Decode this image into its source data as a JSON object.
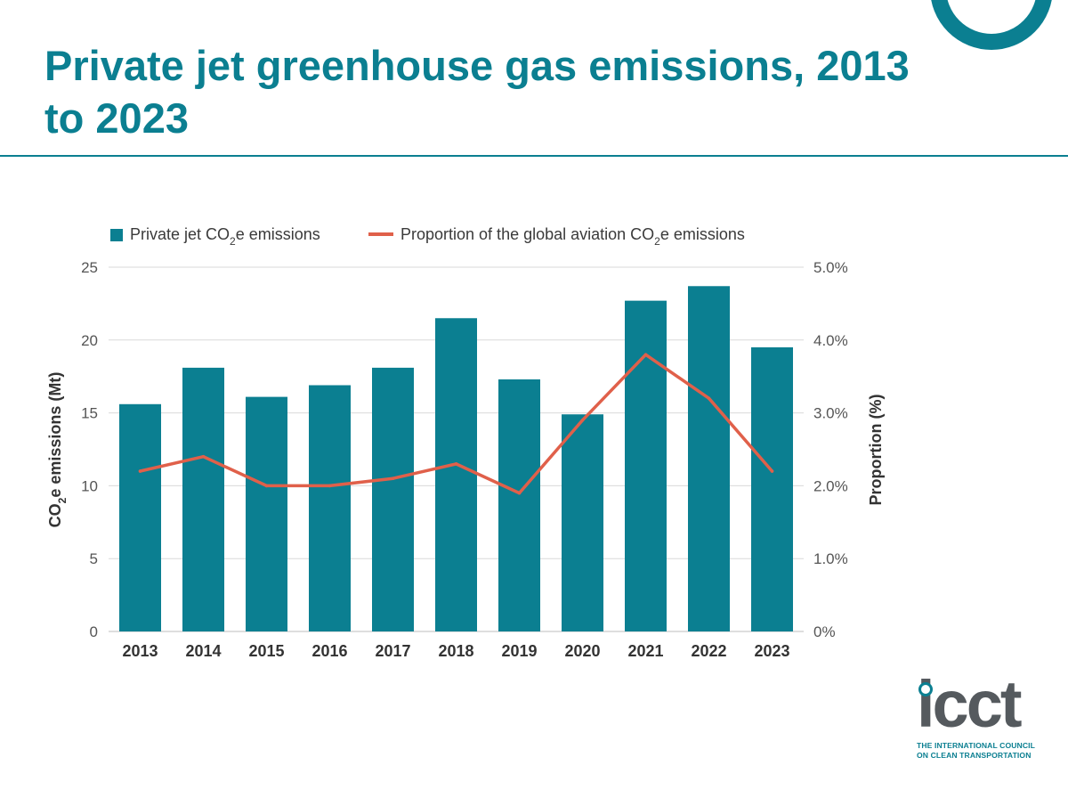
{
  "header": {
    "title": "Private jet greenhouse gas emissions, 2013 to 2023"
  },
  "logo": {
    "word": "icct",
    "tagline_line1": "THE INTERNATIONAL COUNCIL",
    "tagline_line2": "ON CLEAN TRANSPORTATION"
  },
  "colors": {
    "brand": "#0b7f91",
    "bar": "#0b7f91",
    "line": "#e0604a",
    "grid": "#d9d9d9"
  },
  "chart_data": {
    "type": "bar",
    "title": "Private jet greenhouse gas emissions, 2013 to 2023",
    "categories": [
      "2013",
      "2014",
      "2015",
      "2016",
      "2017",
      "2018",
      "2019",
      "2020",
      "2021",
      "2022",
      "2023"
    ],
    "series": [
      {
        "name": "Private jet CO2e emissions",
        "name_base": "Private jet CO",
        "name_sub": "2",
        "name_tail": "e emissions",
        "type": "bar",
        "axis": "left",
        "values": [
          15.6,
          18.1,
          16.1,
          16.9,
          18.1,
          21.5,
          17.3,
          14.9,
          22.7,
          23.7,
          19.5
        ]
      },
      {
        "name": "Proportion of the global aviation CO2e emissions",
        "name_base": "Proportion of the global aviation CO",
        "name_sub": "2",
        "name_tail": "e emissions",
        "type": "line",
        "axis": "right",
        "values": [
          2.2,
          2.4,
          2.0,
          2.0,
          2.1,
          2.3,
          1.9,
          2.9,
          3.8,
          3.2,
          2.2
        ]
      }
    ],
    "ylabel": "CO2e emissions (Mt)",
    "ylabel_base": "CO",
    "ylabel_sub": "2",
    "ylabel_tail": "e emissions (Mt)",
    "ylim": [
      0,
      25
    ],
    "yticks": [
      "0",
      "5",
      "10",
      "15",
      "20",
      "25"
    ],
    "y2label": "Proportion (%)",
    "y2lim": [
      0,
      5
    ],
    "y2ticks": [
      "0%",
      "1.0%",
      "2.0%",
      "3.0%",
      "4.0%",
      "5.0%"
    ],
    "grid": true,
    "legend": "top"
  }
}
